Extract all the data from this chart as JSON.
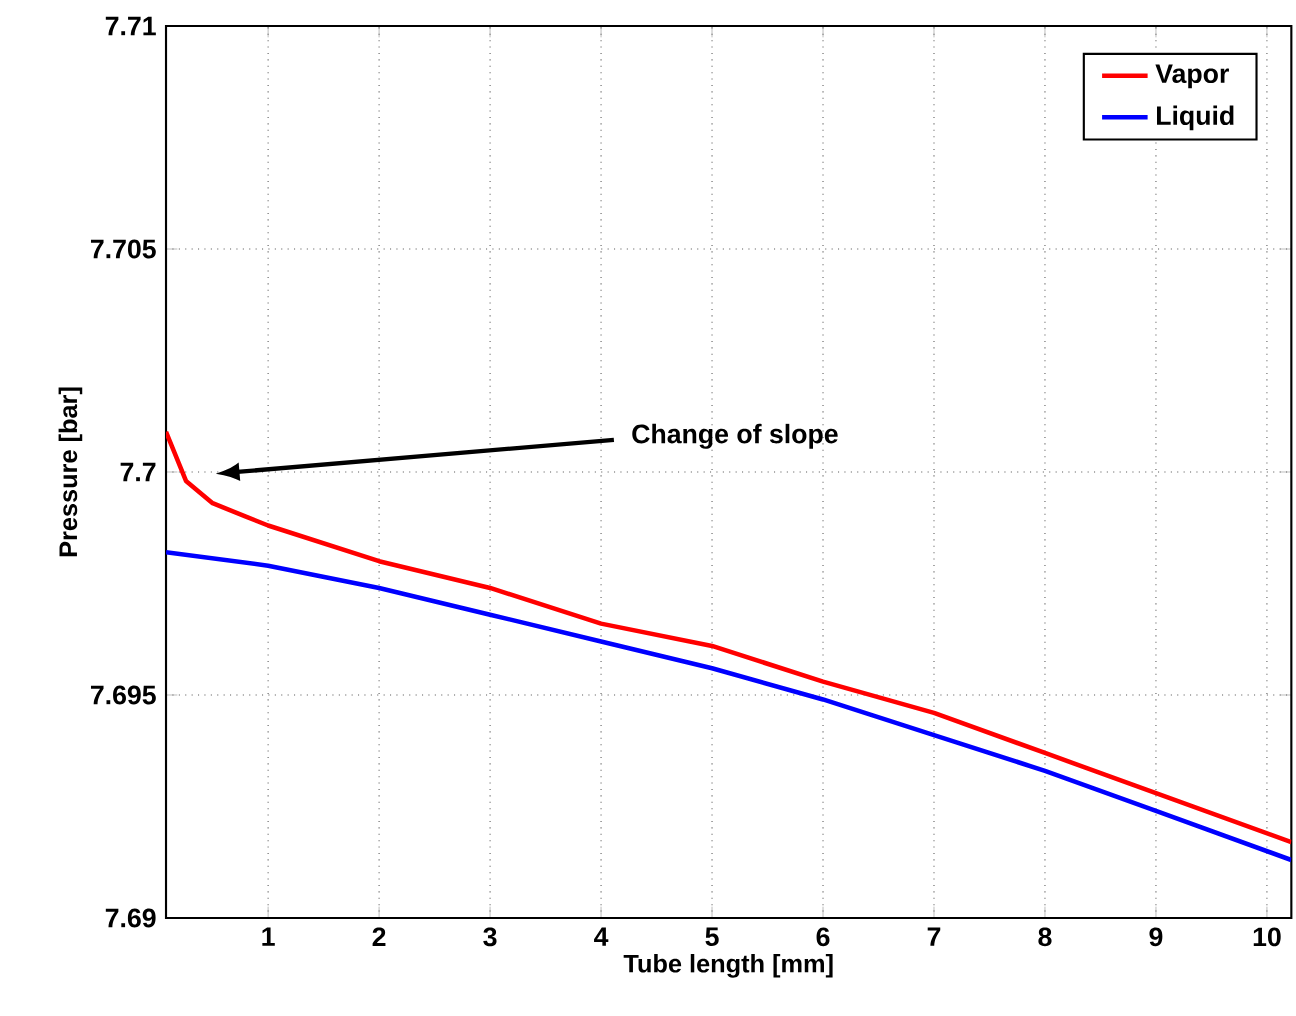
{
  "chart_data": {
    "type": "line",
    "xlabel": "Tube length [mm]",
    "ylabel": "Pressure [bar]",
    "xlim": [
      0.08,
      10.22
    ],
    "xticks": [
      1,
      2,
      3,
      4,
      5,
      6,
      7,
      8,
      9,
      10
    ],
    "ylim": [
      7.69,
      7.71
    ],
    "yticks": [
      7.69,
      7.695,
      7.7,
      7.705,
      7.71
    ],
    "grid": true,
    "legend": "top right",
    "line_style": "solid",
    "marker": "none",
    "annotations": [
      "Change of slope"
    ],
    "series": [
      {
        "name": "Vapor",
        "color": "#ff0000",
        "x": [
          0.08,
          0.26,
          0.5,
          0.8,
          1,
          2,
          3,
          4,
          5,
          6,
          7,
          8,
          9,
          10.22
        ],
        "values": [
          7.7009,
          7.6998,
          7.6993,
          7.699,
          7.6988,
          7.698,
          7.6974,
          7.6966,
          7.6961,
          7.6953,
          7.6946,
          7.6937,
          7.6928,
          7.6917
        ]
      },
      {
        "name": "Liquid",
        "color": "#0000ff",
        "x": [
          0.08,
          1,
          2,
          3,
          4,
          5,
          6,
          7,
          8,
          9,
          10.22
        ],
        "values": [
          7.6982,
          7.6979,
          7.6974,
          7.6968,
          7.6962,
          7.6956,
          7.6949,
          7.6941,
          7.6933,
          7.6924,
          7.6913
        ]
      }
    ]
  }
}
